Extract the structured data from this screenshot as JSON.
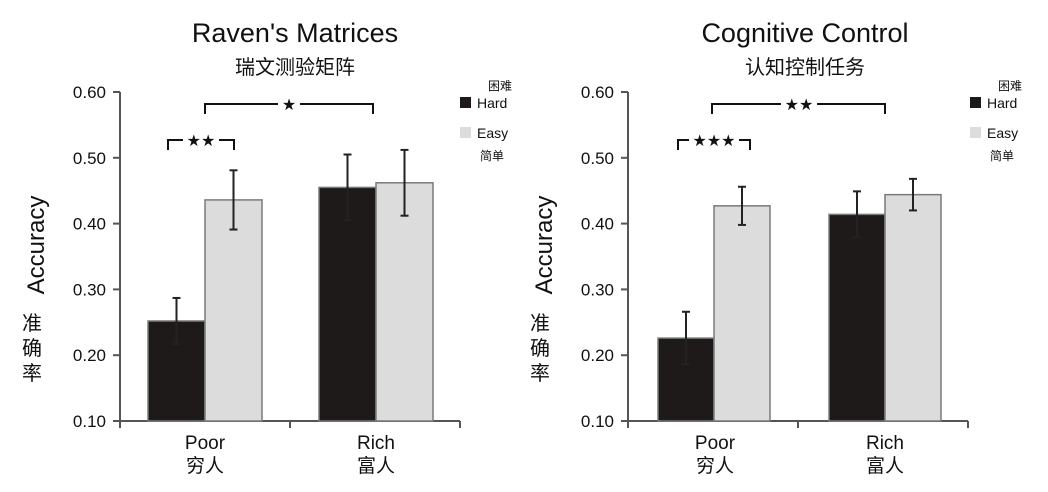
{
  "chart_data": [
    {
      "type": "bar",
      "title": "Raven's Matrices",
      "subtitle": "瑞文测验矩阵",
      "ylabel": "Accuracy",
      "ylabel_cn": "准确率",
      "ylim": [
        0.1,
        0.6
      ],
      "yticks": [
        "0.10",
        "0.20",
        "0.30",
        "0.40",
        "0.50",
        "0.60"
      ],
      "categories": [
        "Poor",
        "Rich"
      ],
      "categories_cn": [
        "穷人",
        "富人"
      ],
      "series": [
        {
          "name": "Hard",
          "name_cn": "困难",
          "color": "#1e1a1a",
          "values": [
            0.252,
            0.455
          ],
          "errors": [
            0.035,
            0.05
          ]
        },
        {
          "name": "Easy",
          "name_cn": "简单",
          "color": "#dcdcdc",
          "values": [
            0.436,
            0.462
          ],
          "errors": [
            0.045,
            0.05
          ]
        }
      ],
      "significance": [
        {
          "label": "★★",
          "between": "Poor: Hard vs Easy"
        },
        {
          "label": "★",
          "between": "Poor vs Rich"
        }
      ],
      "legend_position": "top-right"
    },
    {
      "type": "bar",
      "title": "Cognitive Control",
      "subtitle": "认知控制任务",
      "ylabel": "Accuracy",
      "ylabel_cn": "准确率",
      "ylim": [
        0.1,
        0.6
      ],
      "yticks": [
        "0.10",
        "0.20",
        "0.30",
        "0.40",
        "0.50",
        "0.60"
      ],
      "categories": [
        "Poor",
        "Rich"
      ],
      "categories_cn": [
        "穷人",
        "富人"
      ],
      "series": [
        {
          "name": "Hard",
          "name_cn": "困难",
          "color": "#1e1a1a",
          "values": [
            0.226,
            0.414
          ],
          "errors": [
            0.04,
            0.035
          ]
        },
        {
          "name": "Easy",
          "name_cn": "简单",
          "color": "#dcdcdc",
          "values": [
            0.427,
            0.444
          ],
          "errors": [
            0.029,
            0.024
          ]
        }
      ],
      "significance": [
        {
          "label": "★★★",
          "between": "Poor: Hard vs Easy"
        },
        {
          "label": "★★",
          "between": "Poor vs Rich"
        }
      ],
      "legend_position": "top-right"
    }
  ]
}
